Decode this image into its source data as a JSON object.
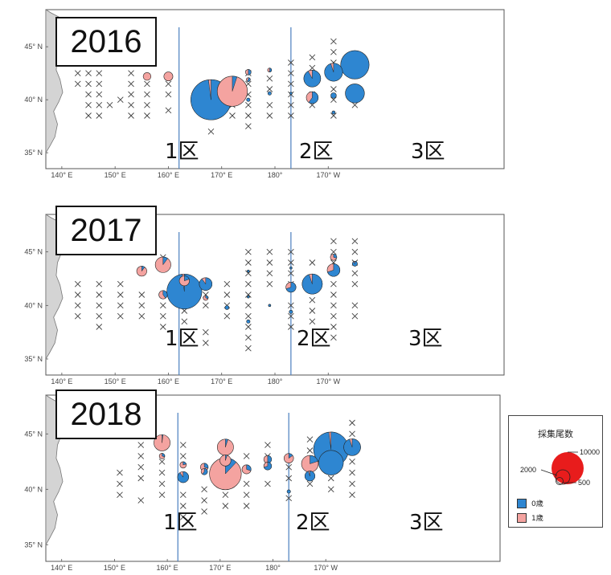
{
  "colors": {
    "age0": "#2e86d1",
    "age1": "#f4a3a0",
    "land": "#d4d4d4",
    "coast": "#777777",
    "boundary": "#4a7fbf",
    "legend_demo": "#e81c1c",
    "cross": "#444444"
  },
  "axis": {
    "lon_min": 137,
    "lon_max": 223,
    "lat_min": 33.5,
    "lat_max": 48.5,
    "lon_ticks": [
      {
        "value": 140,
        "label": "140° E"
      },
      {
        "value": 150,
        "label": "150° E"
      },
      {
        "value": 160,
        "label": "160° E"
      },
      {
        "value": 170,
        "label": "170° E"
      },
      {
        "value": 180,
        "label": "180°"
      },
      {
        "value": 190,
        "label": "170° W"
      }
    ],
    "lat_ticks": [
      {
        "value": 45,
        "label": "45° N"
      },
      {
        "value": 40,
        "label": "40° N"
      },
      {
        "value": 35,
        "label": "35° N"
      }
    ],
    "zone_boundaries_lon": [
      162,
      183
    ]
  },
  "zones": [
    "1区",
    "2区",
    "3区"
  ],
  "legend": {
    "title": "採集尾数",
    "size_labels": [
      "10000",
      "2000",
      "500"
    ],
    "age0_label": "0歳",
    "age1_label": "1歳"
  },
  "maps": [
    {
      "year": "2016",
      "crosses": [
        [
          143,
          41.5
        ],
        [
          143,
          42.5
        ],
        [
          145,
          38.5
        ],
        [
          145,
          39.5
        ],
        [
          145,
          40.5
        ],
        [
          145,
          41.5
        ],
        [
          145,
          42.5
        ],
        [
          147,
          38.5
        ],
        [
          147,
          39.5
        ],
        [
          147,
          40.5
        ],
        [
          147,
          41.5
        ],
        [
          147,
          42.5
        ],
        [
          149,
          39.5
        ],
        [
          151,
          40
        ],
        [
          153,
          38.5
        ],
        [
          153,
          39.5
        ],
        [
          153,
          40.5
        ],
        [
          153,
          41.5
        ],
        [
          153,
          42.5
        ],
        [
          156,
          38.5
        ],
        [
          156,
          39.5
        ],
        [
          156,
          40.5
        ],
        [
          156,
          41.5
        ],
        [
          160,
          39
        ],
        [
          160,
          40.5
        ],
        [
          160,
          41.5
        ],
        [
          168,
          37
        ],
        [
          168,
          38.5
        ],
        [
          168,
          40
        ],
        [
          168,
          41.5
        ],
        [
          172,
          38.5
        ],
        [
          172,
          39.5
        ],
        [
          175,
          37.5
        ],
        [
          175,
          38.5
        ],
        [
          175,
          39.5
        ],
        [
          175,
          40.5
        ],
        [
          175,
          41.5
        ],
        [
          175,
          42.5
        ],
        [
          179,
          38.5
        ],
        [
          179,
          39.5
        ],
        [
          179,
          41
        ],
        [
          179,
          42
        ],
        [
          183,
          38.5
        ],
        [
          183,
          39.5
        ],
        [
          183,
          40.5
        ],
        [
          183,
          41.5
        ],
        [
          183,
          42.5
        ],
        [
          183,
          43.5
        ],
        [
          187,
          39.5
        ],
        [
          187,
          40.5
        ],
        [
          187,
          43
        ],
        [
          187,
          44
        ],
        [
          191,
          38.5
        ],
        [
          191,
          40
        ],
        [
          191,
          41
        ],
        [
          191,
          43.5
        ],
        [
          191,
          44.5
        ],
        [
          191,
          45.5
        ],
        [
          195,
          39.5
        ],
        [
          195,
          41
        ]
      ],
      "catches": [
        [
          156,
          42.2,
          300,
          0.0
        ],
        [
          160,
          42.2,
          400,
          0.0
        ],
        [
          168,
          40.0,
          8000,
          0.98
        ],
        [
          172,
          40.8,
          4500,
          0.05
        ],
        [
          175,
          42.6,
          150,
          0.5
        ],
        [
          175,
          41.9,
          80,
          0.6
        ],
        [
          175,
          40.0,
          60,
          1.0
        ],
        [
          179,
          42.8,
          80,
          0.5
        ],
        [
          179,
          40.6,
          60,
          1.0
        ],
        [
          183,
          40.6,
          15,
          1.0
        ],
        [
          187,
          42.0,
          1400,
          0.92
        ],
        [
          187,
          40.2,
          700,
          0.6
        ],
        [
          191,
          42.6,
          1600,
          0.95
        ],
        [
          191,
          40.4,
          150,
          1.0
        ],
        [
          191,
          38.8,
          50,
          1.0
        ],
        [
          195,
          43.3,
          4000,
          1.0
        ],
        [
          195,
          40.6,
          1800,
          1.0
        ]
      ]
    },
    {
      "year": "2017",
      "crosses": [
        [
          143,
          39
        ],
        [
          143,
          40
        ],
        [
          143,
          41
        ],
        [
          143,
          42
        ],
        [
          147,
          38
        ],
        [
          147,
          39
        ],
        [
          147,
          40
        ],
        [
          147,
          41
        ],
        [
          147,
          42
        ],
        [
          151,
          39
        ],
        [
          151,
          40
        ],
        [
          151,
          41
        ],
        [
          151,
          42
        ],
        [
          155,
          39
        ],
        [
          155,
          40
        ],
        [
          155,
          41
        ],
        [
          159,
          38
        ],
        [
          159,
          39
        ],
        [
          159,
          40
        ],
        [
          159,
          44.5
        ],
        [
          163,
          38.5
        ],
        [
          163,
          39.5
        ],
        [
          163,
          40.5
        ],
        [
          167,
          36.5
        ],
        [
          167,
          37.5
        ],
        [
          167,
          40
        ],
        [
          167,
          41
        ],
        [
          171,
          39
        ],
        [
          171,
          40
        ],
        [
          171,
          41
        ],
        [
          171,
          42
        ],
        [
          175,
          36
        ],
        [
          175,
          37
        ],
        [
          175,
          38
        ],
        [
          175,
          39
        ],
        [
          175,
          40
        ],
        [
          175,
          41
        ],
        [
          175,
          42
        ],
        [
          175,
          43
        ],
        [
          175,
          44
        ],
        [
          175,
          45
        ],
        [
          179,
          42
        ],
        [
          179,
          43
        ],
        [
          179,
          44
        ],
        [
          179,
          45
        ],
        [
          183,
          38
        ],
        [
          183,
          39
        ],
        [
          183,
          40
        ],
        [
          183,
          42
        ],
        [
          183,
          43
        ],
        [
          183,
          44
        ],
        [
          183,
          45
        ],
        [
          187,
          38.5
        ],
        [
          187,
          39.5
        ],
        [
          187,
          40.5
        ],
        [
          187,
          44
        ],
        [
          191,
          37
        ],
        [
          191,
          38
        ],
        [
          191,
          39
        ],
        [
          191,
          40
        ],
        [
          191,
          41
        ],
        [
          191,
          42
        ],
        [
          191,
          44
        ],
        [
          191,
          45
        ],
        [
          191,
          46
        ],
        [
          195,
          39
        ],
        [
          195,
          40
        ],
        [
          195,
          42
        ],
        [
          195,
          43
        ],
        [
          195,
          44
        ],
        [
          195,
          45
        ],
        [
          195,
          46
        ]
      ],
      "catches": [
        [
          155,
          43.2,
          500,
          0.1
        ],
        [
          159,
          43.8,
          1200,
          0.1
        ],
        [
          159,
          41.0,
          350,
          0.4
        ],
        [
          163,
          42.3,
          500,
          0.2
        ],
        [
          163,
          41.3,
          6000,
          0.98
        ],
        [
          167,
          42.0,
          800,
          0.9
        ],
        [
          167,
          40.7,
          120,
          0.3
        ],
        [
          171,
          39.8,
          80,
          1.0
        ],
        [
          175,
          43.2,
          15,
          1.0
        ],
        [
          175,
          40.8,
          10,
          1.0
        ],
        [
          175,
          38.5,
          60,
          1.0
        ],
        [
          179,
          40.0,
          10,
          1.0
        ],
        [
          183,
          41.7,
          500,
          0.7
        ],
        [
          183,
          39.4,
          60,
          1.0
        ],
        [
          183,
          43.5,
          20,
          1.0
        ],
        [
          187,
          42.0,
          2000,
          0.95
        ],
        [
          191,
          43.3,
          800,
          0.7
        ],
        [
          191,
          44.5,
          200,
          0.3
        ],
        [
          195,
          43.9,
          120,
          0.9
        ]
      ]
    },
    {
      "year": "2018",
      "crosses": [
        [
          151,
          39.5
        ],
        [
          151,
          40.5
        ],
        [
          151,
          41.5
        ],
        [
          155,
          39
        ],
        [
          155,
          41
        ],
        [
          155,
          42
        ],
        [
          155,
          43
        ],
        [
          155,
          44
        ],
        [
          159,
          39.5
        ],
        [
          159,
          40.5
        ],
        [
          159,
          41.5
        ],
        [
          159,
          42.5
        ],
        [
          163,
          37.5
        ],
        [
          163,
          38.5
        ],
        [
          163,
          39.5
        ],
        [
          163,
          43
        ],
        [
          163,
          44
        ],
        [
          167,
          38
        ],
        [
          167,
          39
        ],
        [
          167,
          40
        ],
        [
          171,
          38.5
        ],
        [
          171,
          39.5
        ],
        [
          171,
          40.5
        ],
        [
          175,
          38.5
        ],
        [
          175,
          39.5
        ],
        [
          175,
          40.5
        ],
        [
          175,
          43
        ],
        [
          179,
          40.5
        ],
        [
          179,
          43
        ],
        [
          179,
          44
        ],
        [
          183,
          39.2
        ],
        [
          183,
          41
        ],
        [
          183,
          42
        ],
        [
          187,
          40.5
        ],
        [
          187,
          41.5
        ],
        [
          187,
          43.5
        ],
        [
          187,
          44.5
        ],
        [
          191,
          40
        ],
        [
          191,
          41
        ],
        [
          191,
          42
        ],
        [
          191,
          43
        ],
        [
          195,
          39.5
        ],
        [
          195,
          40.5
        ],
        [
          195,
          41.5
        ],
        [
          195,
          42.5
        ],
        [
          195,
          45
        ],
        [
          195,
          46
        ]
      ],
      "catches": [
        [
          159,
          44.2,
          1300,
          0.02
        ],
        [
          159,
          43.0,
          150,
          0.3
        ],
        [
          163,
          42.2,
          200,
          0.2
        ],
        [
          163,
          41.1,
          600,
          0.9
        ],
        [
          167,
          42.0,
          300,
          0.3
        ],
        [
          167,
          41.6,
          200,
          0.6
        ],
        [
          171,
          43.8,
          1300,
          0.05
        ],
        [
          171,
          42.6,
          600,
          0.05
        ],
        [
          171,
          41.4,
          5000,
          0.12
        ],
        [
          175,
          41.8,
          400,
          0.3
        ],
        [
          179,
          42.7,
          300,
          0.5
        ],
        [
          179,
          42.1,
          300,
          0.7
        ],
        [
          183,
          42.8,
          450,
          0.15
        ],
        [
          183,
          39.8,
          60,
          1.0
        ],
        [
          187,
          42.3,
          1400,
          0.2
        ],
        [
          187,
          41.2,
          500,
          0.95
        ],
        [
          191,
          42.4,
          3000,
          1.0
        ],
        [
          191,
          43.6,
          6000,
          0.98
        ],
        [
          195,
          43.8,
          1400,
          0.95
        ]
      ]
    }
  ]
}
